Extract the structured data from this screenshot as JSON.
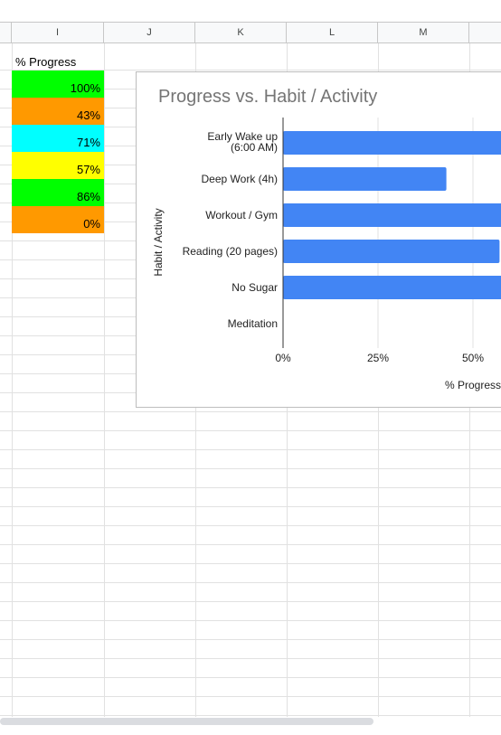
{
  "columns": [
    "I",
    "J",
    "K",
    "L",
    "M",
    ""
  ],
  "progress_column": {
    "header": "% Progress",
    "cells": [
      {
        "value": "100%",
        "color": "#00ff00"
      },
      {
        "value": "43%",
        "color": "#ff9900"
      },
      {
        "value": "71%",
        "color": "#00ffff"
      },
      {
        "value": "57%",
        "color": "#ffff00"
      },
      {
        "value": "86%",
        "color": "#00ff00"
      },
      {
        "value": "0%",
        "color": "#ff9900"
      }
    ]
  },
  "chart_data": {
    "type": "bar",
    "orientation": "horizontal",
    "title": "Progress vs. Habit / Activity",
    "xlabel": "% Progress",
    "ylabel": "Habit / Activity",
    "categories": [
      [
        "Early Wake up",
        "(6:00 AM)"
      ],
      [
        "Deep Work (4h)"
      ],
      [
        "Workout / Gym"
      ],
      [
        "Reading (20 pages)"
      ],
      [
        "No Sugar"
      ],
      [
        "Meditation"
      ]
    ],
    "values": [
      100,
      43,
      71,
      57,
      86,
      0
    ],
    "bar_color": "#4285f4",
    "xlim": [
      0,
      100
    ],
    "xticks": [
      "0%",
      "25%",
      "50%"
    ],
    "grid": true
  }
}
